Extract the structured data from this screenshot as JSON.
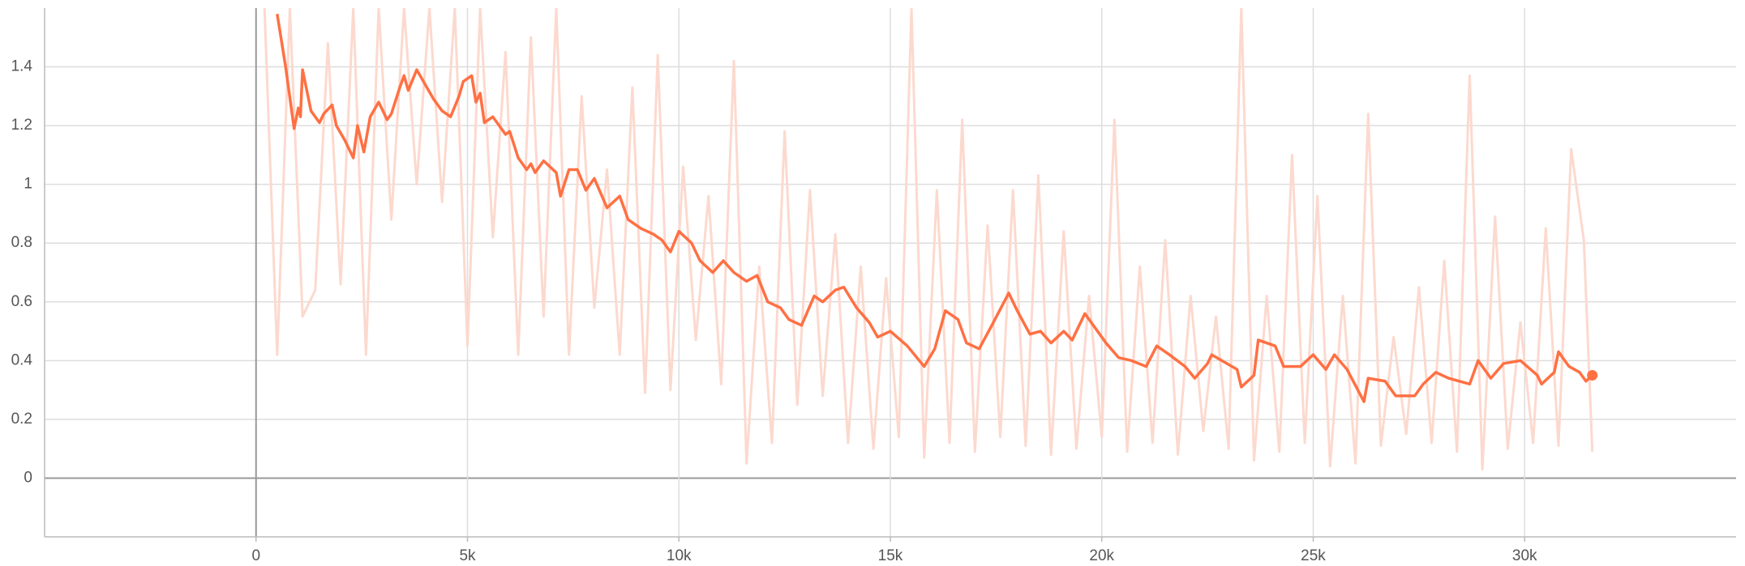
{
  "chart_data": {
    "type": "line",
    "xlim": [
      -5000,
      35000
    ],
    "ylim": [
      -0.2,
      1.6
    ],
    "xticks": [
      0,
      {
        "value": 5000,
        "label": "5k"
      },
      {
        "value": 10000,
        "label": "10k"
      },
      {
        "value": 15000,
        "label": "15k"
      },
      {
        "value": 20000,
        "label": "20k"
      },
      {
        "value": 25000,
        "label": "25k"
      },
      {
        "value": 30000,
        "label": "30k"
      }
    ],
    "yticks": [
      0,
      0.2,
      0.4,
      0.6,
      0.8,
      1,
      1.2,
      1.4
    ],
    "grid": true,
    "series": [
      {
        "color": "#fcd9ce",
        "x": [
          200,
          500,
          800,
          1100,
          1400,
          1700,
          2000,
          2300,
          2600,
          2900,
          3200,
          3500,
          3800,
          4100,
          4400,
          4700,
          5000,
          5300,
          5600,
          5900,
          6200,
          6500,
          6800,
          7100,
          7400,
          7700,
          8000,
          8300,
          8600,
          8900,
          9200,
          9500,
          9800,
          10100,
          10400,
          10700,
          11000,
          11300,
          11600,
          11900,
          12200,
          12500,
          12800,
          13100,
          13400,
          13700,
          14000,
          14300,
          14600,
          14900,
          15200,
          15500,
          15800,
          16100,
          16400,
          16700,
          17000,
          17300,
          17600,
          17900,
          18200,
          18500,
          18800,
          19100,
          19400,
          19700,
          20000,
          20300,
          20600,
          20900,
          21200,
          21500,
          21800,
          22100,
          22400,
          22700,
          23000,
          23300,
          23600,
          23900,
          24200,
          24500,
          24800,
          25100,
          25400,
          25700,
          26000,
          26300,
          26600,
          26900,
          27200,
          27500,
          27800,
          28100,
          28400,
          28700,
          29000,
          29300,
          29600,
          29900,
          30200,
          30500,
          30800,
          31100,
          31400,
          31600
        ],
        "values": [
          1.6,
          0.42,
          1.6,
          0.55,
          0.64,
          1.48,
          0.66,
          1.6,
          0.42,
          1.6,
          0.88,
          1.6,
          1.0,
          1.6,
          0.94,
          1.6,
          0.45,
          1.6,
          0.82,
          1.45,
          0.42,
          1.5,
          0.55,
          1.6,
          0.42,
          1.3,
          0.58,
          1.05,
          0.42,
          1.33,
          0.29,
          1.44,
          0.3,
          1.06,
          0.47,
          0.96,
          0.32,
          1.42,
          0.05,
          0.72,
          0.12,
          1.18,
          0.25,
          0.98,
          0.28,
          0.83,
          0.12,
          0.72,
          0.1,
          0.68,
          0.14,
          1.6,
          0.07,
          0.98,
          0.12,
          1.22,
          0.09,
          0.86,
          0.14,
          0.98,
          0.11,
          1.03,
          0.08,
          0.84,
          0.1,
          0.62,
          0.14,
          1.22,
          0.09,
          0.72,
          0.12,
          0.81,
          0.08,
          0.62,
          0.16,
          0.55,
          0.1,
          1.6,
          0.06,
          0.62,
          0.09,
          1.1,
          0.12,
          0.96,
          0.04,
          0.62,
          0.05,
          1.24,
          0.11,
          0.48,
          0.15,
          0.65,
          0.12,
          0.74,
          0.09,
          1.37,
          0.03,
          0.89,
          0.1,
          0.53,
          0.12,
          0.85,
          0.11,
          1.12,
          0.81,
          0.09
        ]
      },
      {
        "color": "#ff7043",
        "x": [
          500,
          700,
          900,
          1000,
          1050,
          1100,
          1300,
          1500,
          1600,
          1800,
          1900,
          2100,
          2300,
          2400,
          2550,
          2700,
          2900,
          3100,
          3200,
          3400,
          3500,
          3600,
          3800,
          4000,
          4200,
          4400,
          4600,
          4800,
          4900,
          5100,
          5200,
          5300,
          5400,
          5600,
          5900,
          6000,
          6200,
          6400,
          6500,
          6600,
          6800,
          7100,
          7200,
          7400,
          7600,
          7800,
          8000,
          8300,
          8600,
          8800,
          9100,
          9400,
          9600,
          9800,
          10000,
          10300,
          10500,
          10800,
          11050,
          11300,
          11600,
          11850,
          12100,
          12400,
          12600,
          12900,
          13200,
          13400,
          13700,
          13900,
          14200,
          14500,
          14700,
          15000,
          15400,
          15800,
          16050,
          16300,
          16600,
          16800,
          17100,
          17400,
          17800,
          18000,
          18300,
          18550,
          18800,
          19100,
          19300,
          19600,
          19900,
          20100,
          20400,
          20700,
          21050,
          21300,
          21600,
          21970,
          22200,
          22500,
          22600,
          23200,
          23300,
          23600,
          23700,
          24100,
          24300,
          24700,
          25000,
          25300,
          25500,
          25800,
          26200,
          26300,
          26700,
          26950,
          27400,
          27600,
          27900,
          28200,
          28700,
          28900,
          29200,
          29500,
          29900,
          30300,
          30400,
          30700,
          30800,
          31050,
          31300,
          31450,
          31600
        ],
        "values": [
          1.58,
          1.4,
          1.19,
          1.26,
          1.23,
          1.39,
          1.25,
          1.21,
          1.24,
          1.27,
          1.2,
          1.15,
          1.09,
          1.2,
          1.11,
          1.23,
          1.28,
          1.22,
          1.24,
          1.33,
          1.37,
          1.32,
          1.39,
          1.34,
          1.29,
          1.25,
          1.23,
          1.3,
          1.35,
          1.37,
          1.28,
          1.31,
          1.21,
          1.23,
          1.17,
          1.18,
          1.09,
          1.05,
          1.07,
          1.04,
          1.08,
          1.04,
          0.96,
          1.05,
          1.05,
          0.98,
          1.02,
          0.92,
          0.96,
          0.88,
          0.85,
          0.83,
          0.81,
          0.77,
          0.84,
          0.8,
          0.74,
          0.7,
          0.74,
          0.7,
          0.67,
          0.69,
          0.6,
          0.58,
          0.54,
          0.52,
          0.62,
          0.6,
          0.64,
          0.65,
          0.58,
          0.53,
          0.48,
          0.5,
          0.45,
          0.38,
          0.44,
          0.57,
          0.54,
          0.46,
          0.44,
          0.52,
          0.63,
          0.57,
          0.49,
          0.5,
          0.46,
          0.5,
          0.47,
          0.56,
          0.5,
          0.46,
          0.41,
          0.4,
          0.38,
          0.45,
          0.42,
          0.38,
          0.34,
          0.39,
          0.42,
          0.37,
          0.31,
          0.35,
          0.47,
          0.45,
          0.38,
          0.38,
          0.42,
          0.37,
          0.42,
          0.37,
          0.26,
          0.34,
          0.33,
          0.28,
          0.28,
          0.32,
          0.36,
          0.34,
          0.32,
          0.4,
          0.34,
          0.39,
          0.4,
          0.35,
          0.32,
          0.36,
          0.43,
          0.38,
          0.36,
          0.33,
          0.35
        ]
      }
    ]
  }
}
